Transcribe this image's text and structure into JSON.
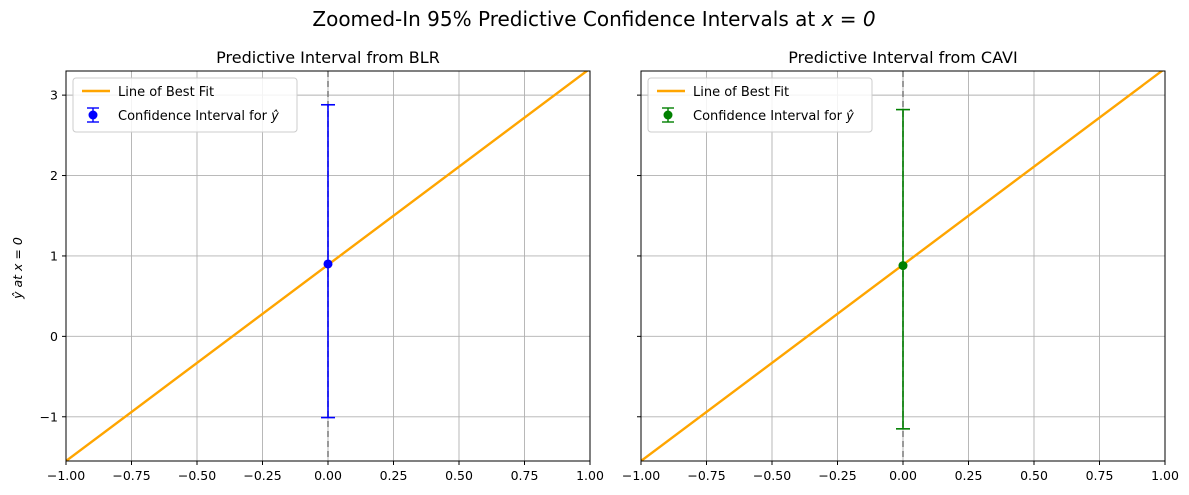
{
  "figure": {
    "suptitle_prefix": "Zoomed-In 95% Predictive Confidence Intervals at ",
    "suptitle_math": "x = 0",
    "ylabel_pre": "ŷ at ",
    "ylabel_math": "x = 0"
  },
  "colors": {
    "line": "#FFA500",
    "blr": "#0000FF",
    "cavi": "#008000",
    "grid": "#b0b0b0",
    "vline": "#808080"
  },
  "chart_data": [
    {
      "type": "line",
      "title": "Predictive Interval from BLR",
      "xlim": [
        -1.0,
        1.0
      ],
      "ylim": [
        -1.55,
        3.3
      ],
      "xticks": [
        -1.0,
        -0.75,
        -0.5,
        -0.25,
        0.0,
        0.25,
        0.5,
        0.75,
        1.0
      ],
      "xtick_labels": [
        "−1.00",
        "−0.75",
        "−0.50",
        "−0.25",
        "0.00",
        "0.25",
        "0.50",
        "0.75",
        "1.00"
      ],
      "yticks": [
        -1,
        0,
        1,
        2,
        3
      ],
      "ytick_labels": [
        "−1",
        "0",
        "1",
        "2",
        "3"
      ],
      "grid": true,
      "legend_position": "top-left",
      "line": {
        "name": "Line of Best Fit",
        "x": [
          -1.0,
          1.0
        ],
        "y": [
          -1.55,
          3.33
        ]
      },
      "interval": {
        "name_pre": "Confidence Interval for ",
        "name_math": "ŷ",
        "x": 0.0,
        "y": 0.9,
        "lower": -1.01,
        "upper": 2.88
      },
      "vline_x": 0.0,
      "point_color": "#0000FF"
    },
    {
      "type": "line",
      "title": "Predictive Interval from CAVI",
      "xlim": [
        -1.0,
        1.0
      ],
      "ylim": [
        -1.55,
        3.3
      ],
      "xticks": [
        -1.0,
        -0.75,
        -0.5,
        -0.25,
        0.0,
        0.25,
        0.5,
        0.75,
        1.0
      ],
      "xtick_labels": [
        "−1.00",
        "−0.75",
        "−0.50",
        "−0.25",
        "0.00",
        "0.25",
        "0.50",
        "0.75",
        "1.00"
      ],
      "yticks": [
        -1,
        0,
        1,
        2,
        3
      ],
      "ytick_labels": [
        "",
        "",
        "",
        "",
        ""
      ],
      "grid": true,
      "legend_position": "top-left",
      "line": {
        "name": "Line of Best Fit",
        "x": [
          -1.0,
          1.0
        ],
        "y": [
          -1.55,
          3.33
        ]
      },
      "interval": {
        "name_pre": "Confidence Interval for ",
        "name_math": "ŷ",
        "x": 0.0,
        "y": 0.88,
        "lower": -1.15,
        "upper": 2.82
      },
      "vline_x": 0.0,
      "point_color": "#008000"
    }
  ]
}
